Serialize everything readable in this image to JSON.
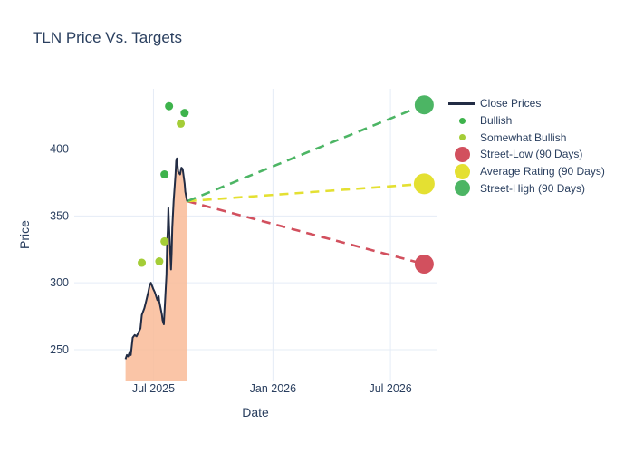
{
  "chart_data": {
    "type": "line",
    "title": "TLN Price Vs. Targets",
    "xlabel": "Date",
    "ylabel": "Price",
    "grid": true,
    "legend_position": "right",
    "x_axis_range": [
      "2025-03-01",
      "2026-09-10"
    ],
    "y_axis_range": [
      227,
      445
    ],
    "x_ticks": [
      {
        "date": "2025-07-01",
        "label": "Jul 2025"
      },
      {
        "date": "2026-01-01",
        "label": "Jan 2026"
      },
      {
        "date": "2026-07-01",
        "label": "Jul 2026"
      }
    ],
    "y_ticks": [
      250,
      300,
      350,
      400
    ],
    "close_prices": {
      "name": "Close Prices",
      "line_color": "#222c44",
      "fill_color": "#f9bd9b",
      "points": [
        [
          "2025-05-19",
          243
        ],
        [
          "2025-05-21",
          246
        ],
        [
          "2025-05-23",
          245
        ],
        [
          "2025-05-26",
          249
        ],
        [
          "2025-05-27",
          246
        ],
        [
          "2025-05-30",
          259
        ],
        [
          "2025-06-02",
          261
        ],
        [
          "2025-06-05",
          260
        ],
        [
          "2025-06-09",
          264
        ],
        [
          "2025-06-11",
          266
        ],
        [
          "2025-06-13",
          276
        ],
        [
          "2025-06-17",
          281
        ],
        [
          "2025-06-20",
          287
        ],
        [
          "2025-06-23",
          293
        ],
        [
          "2025-06-25",
          298
        ],
        [
          "2025-06-27",
          300
        ],
        [
          "2025-07-01",
          295
        ],
        [
          "2025-07-03",
          293
        ],
        [
          "2025-07-07",
          287
        ],
        [
          "2025-07-09",
          290
        ],
        [
          "2025-07-10",
          286
        ],
        [
          "2025-07-14",
          276
        ],
        [
          "2025-07-15",
          272
        ],
        [
          "2025-07-17",
          269
        ],
        [
          "2025-07-21",
          306
        ],
        [
          "2025-07-22",
          329
        ],
        [
          "2025-07-23",
          339
        ],
        [
          "2025-07-24",
          356
        ],
        [
          "2025-07-25",
          342
        ],
        [
          "2025-07-28",
          310
        ],
        [
          "2025-07-29",
          322
        ],
        [
          "2025-07-30",
          341
        ],
        [
          "2025-08-01",
          361
        ],
        [
          "2025-08-04",
          381
        ],
        [
          "2025-08-05",
          391
        ],
        [
          "2025-08-06",
          393
        ],
        [
          "2025-08-07",
          388
        ],
        [
          "2025-08-08",
          383
        ],
        [
          "2025-08-11",
          381
        ],
        [
          "2025-08-13",
          386
        ],
        [
          "2025-08-15",
          385
        ],
        [
          "2025-08-18",
          374
        ],
        [
          "2025-08-19",
          368
        ],
        [
          "2025-08-21",
          363
        ],
        [
          "2025-08-22",
          361
        ]
      ]
    },
    "ratings_series": [
      {
        "name": "Bullish",
        "color": "#3eb34c",
        "marker_diameter": 9,
        "points": [
          [
            "2025-07-18",
            381
          ],
          [
            "2025-07-25",
            432
          ],
          [
            "2025-08-18",
            427
          ]
        ]
      },
      {
        "name": "Somewhat Bullish",
        "color": "#a4cd37",
        "marker_diameter": 9,
        "points": [
          [
            "2025-06-13",
            315
          ],
          [
            "2025-07-10",
            316
          ],
          [
            "2025-07-18",
            331
          ],
          [
            "2025-08-12",
            419
          ]
        ]
      }
    ],
    "forecast_origin": {
      "date": "2025-08-22",
      "price": 361
    },
    "targets": [
      {
        "name": "Street-Low (90 Days)",
        "color": "#d2505e",
        "date": "2026-08-22",
        "price": 314,
        "marker_diameter": 21
      },
      {
        "name": "Average Rating (90 Days)",
        "color": "#e4e032",
        "date": "2026-08-22",
        "price": 374,
        "marker_diameter": 23
      },
      {
        "name": "Street-High (90 Days)",
        "color": "#4cb564",
        "date": "2026-08-22",
        "price": 433,
        "marker_diameter": 21
      }
    ],
    "legend": [
      {
        "label": "Close Prices",
        "swatch": "line",
        "color": "#222c44"
      },
      {
        "label": "Bullish",
        "swatch": "dot-small",
        "color": "#3eb34c"
      },
      {
        "label": "Somewhat Bullish",
        "swatch": "dot-small",
        "color": "#a4cd37"
      },
      {
        "label": "Street-Low (90 Days)",
        "swatch": "dot-large",
        "color": "#d2505e"
      },
      {
        "label": "Average Rating (90 Days)",
        "swatch": "dot-large",
        "color": "#e4e032"
      },
      {
        "label": "Street-High (90 Days)",
        "swatch": "dot-large",
        "color": "#4cb564"
      }
    ],
    "colors": {
      "background": "#ffffff",
      "grid": "#e5ecf6",
      "text": "#2a3f5f"
    }
  }
}
